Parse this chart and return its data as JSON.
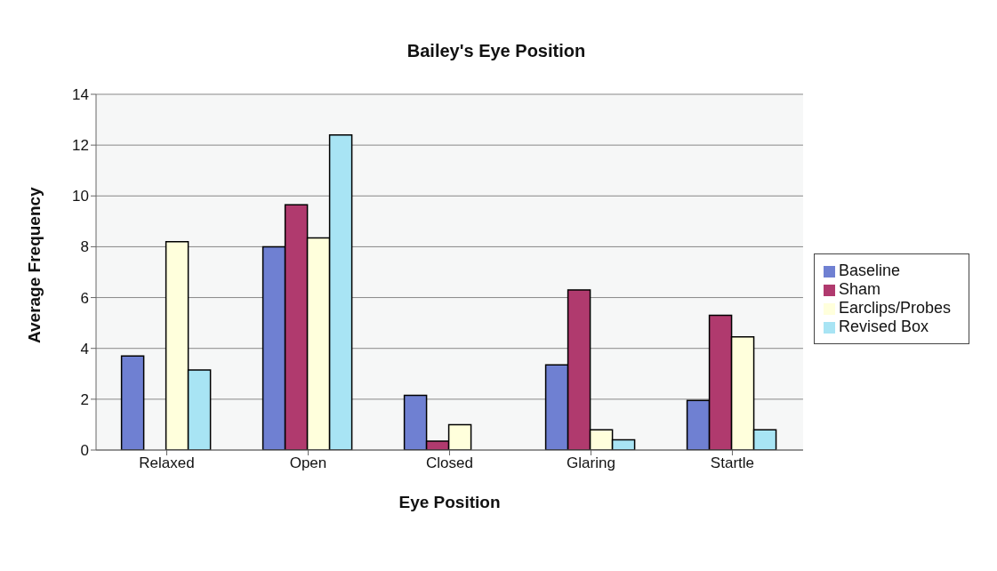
{
  "chart_data": {
    "type": "bar",
    "title": "Bailey's Eye Position",
    "xlabel": "Eye Position",
    "ylabel": "Average Frequency",
    "categories": [
      "Relaxed",
      "Open",
      "Closed",
      "Glaring",
      "Startle"
    ],
    "series": [
      {
        "name": "Baseline",
        "color": "#6f80d2",
        "values": [
          3.7,
          8.0,
          2.15,
          3.35,
          1.95
        ]
      },
      {
        "name": "Sham",
        "color": "#b03a6e",
        "values": [
          0,
          9.65,
          0.35,
          6.3,
          5.3
        ]
      },
      {
        "name": "Earclips/Probes",
        "color": "#ffffdc",
        "values": [
          8.2,
          8.35,
          1.0,
          0.8,
          4.45
        ]
      },
      {
        "name": "Revised Box",
        "color": "#a8e4f4",
        "values": [
          3.15,
          12.4,
          0,
          0.4,
          0.8
        ]
      }
    ],
    "ylim": [
      0,
      14
    ],
    "yticks": [
      0,
      2,
      4,
      6,
      8,
      10,
      12,
      14
    ],
    "grid": "y",
    "legend": "right"
  }
}
